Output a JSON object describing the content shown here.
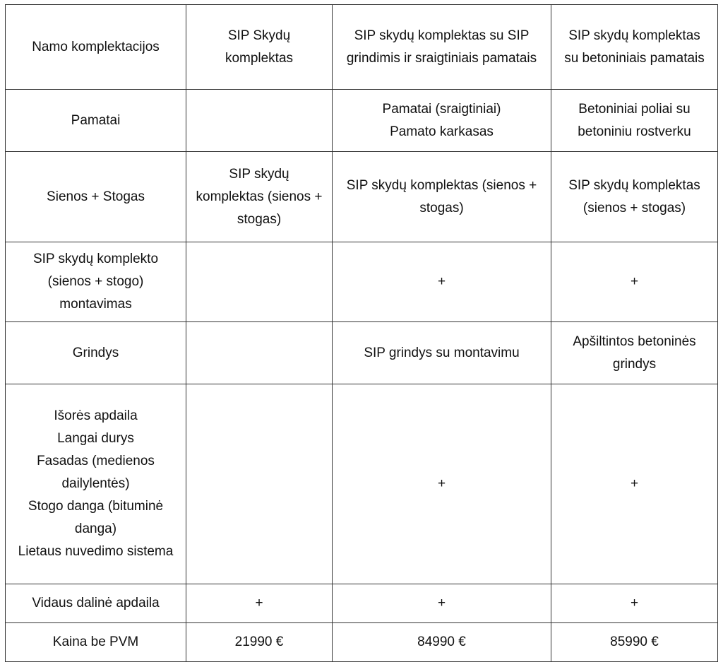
{
  "table": {
    "header": [
      "Namo komplektacijos",
      "SIP Skydų komplektas",
      "SIP skydų komplektas su SIP grindimis ir sraigtiniais pamatais",
      "SIP skydų komplektas su betoniniais pamatais"
    ],
    "rows": [
      {
        "label": [
          "Pamatai"
        ],
        "cells": [
          [],
          [
            "Pamatai (sraigtiniai)",
            "Pamato karkasas"
          ],
          [
            "Betoniniai poliai su betoniniu rostverku"
          ]
        ]
      },
      {
        "label": [
          "Sienos + Stogas"
        ],
        "cells": [
          [
            "SIP skydų komplektas (sienos + stogas)"
          ],
          [
            "SIP skydų komplektas (sienos + stogas)"
          ],
          [
            "SIP skydų komplektas (sienos + stogas)"
          ]
        ]
      },
      {
        "label": [
          "SIP skydų komplekto (sienos + stogo) montavimas"
        ],
        "cells": [
          [],
          [
            "+"
          ],
          [
            "+"
          ]
        ]
      },
      {
        "label": [
          "Grindys"
        ],
        "cells": [
          [],
          [
            "SIP grindys su montavimu"
          ],
          [
            "Apšiltintos betoninės grindys"
          ]
        ]
      },
      {
        "label": [
          "Išorės apdaila",
          "Langai durys",
          "Fasadas (medienos dailylentės)",
          "Stogo danga (bituminė danga)",
          "Lietaus nuvedimo sistema"
        ],
        "cells": [
          [],
          [
            "+"
          ],
          [
            "+"
          ]
        ]
      },
      {
        "label": [
          "Vidaus dalinė apdaila"
        ],
        "cells": [
          [
            "+"
          ],
          [
            "+"
          ],
          [
            "+"
          ]
        ]
      },
      {
        "label": [
          "Kaina be PVM"
        ],
        "cells": [
          [
            "21990 €"
          ],
          [
            "84990 €"
          ],
          [
            "85990 €"
          ]
        ]
      }
    ]
  }
}
